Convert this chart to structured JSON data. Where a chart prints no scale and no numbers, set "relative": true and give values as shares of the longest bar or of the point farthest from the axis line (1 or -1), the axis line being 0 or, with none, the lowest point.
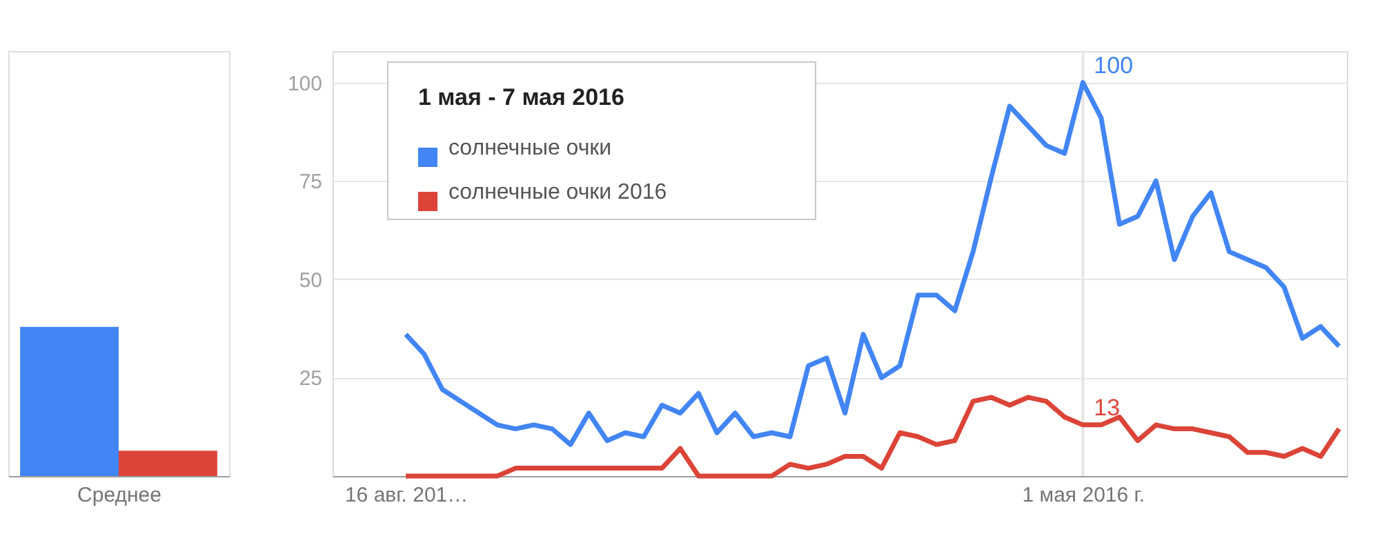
{
  "chart_data": [
    {
      "type": "bar",
      "relative": true,
      "categories": [
        null,
        null
      ],
      "xlabel": "Среднее",
      "tick_labels": false,
      "values": [
        1,
        0.17
      ],
      "colors": [
        "#4285f4",
        "#db4437"
      ]
    },
    {
      "type": "line",
      "legend": "top left",
      "legend_title": "1 мая - 7 мая 2016",
      "marker": "none",
      "line_style": "solid",
      "grid": "y",
      "x": [
        "2015-08-16",
        "2015-08-23",
        "2015-08-30",
        "2015-09-06",
        "2015-09-13",
        "2015-09-20",
        "2015-09-27",
        "2015-10-04",
        "2015-10-11",
        "2015-10-18",
        "2015-10-25",
        "2015-11-01",
        "2015-11-08",
        "2015-11-15",
        "2015-11-22",
        "2015-11-29",
        "2015-12-06",
        "2015-12-13",
        "2015-12-20",
        "2015-12-27",
        "2016-01-03",
        "2016-01-10",
        "2016-01-17",
        "2016-01-24",
        "2016-01-31",
        "2016-02-07",
        "2016-02-14",
        "2016-02-21",
        "2016-02-28",
        "2016-03-06",
        "2016-03-13",
        "2016-03-20",
        "2016-03-27",
        "2016-04-03",
        "2016-04-10",
        "2016-04-17",
        "2016-04-24",
        "2016-05-01",
        "2016-05-08",
        "2016-05-15",
        "2016-05-22",
        "2016-05-29",
        "2016-06-05",
        "2016-06-12",
        "2016-06-19",
        "2016-06-26",
        "2016-07-03",
        "2016-07-10",
        "2016-07-17",
        "2016-07-24",
        "2016-07-31",
        "2016-08-07"
      ],
      "xlim": [
        "2015-07-19",
        "2016-08-10"
      ],
      "xticks": [
        {
          "value": "2015-08-16",
          "label": "16 авг. 201…"
        },
        {
          "value": "2016-05-01",
          "label": "1 мая 2016 г."
        }
      ],
      "ylim": [
        0,
        108
      ],
      "yticks": [
        25,
        50,
        75,
        100
      ],
      "series": [
        {
          "name": "солнечные очки",
          "color": "#4285f4",
          "values": [
            36,
            31,
            22,
            19,
            16,
            13,
            12,
            13,
            12,
            8,
            16,
            9,
            11,
            10,
            18,
            16,
            21,
            11,
            16,
            10,
            11,
            10,
            28,
            30,
            16,
            36,
            25,
            28,
            46,
            46,
            42,
            57,
            76,
            94,
            89,
            84,
            82,
            100,
            91,
            64,
            66,
            75,
            55,
            66,
            72,
            57,
            55,
            53,
            48,
            35,
            38,
            33
          ]
        },
        {
          "name": "солнечные очки 2016",
          "color": "#db4437",
          "values": [
            0,
            0,
            0,
            0,
            0,
            0,
            2,
            2,
            2,
            2,
            2,
            2,
            2,
            2,
            2,
            7,
            0,
            0,
            0,
            0,
            0,
            3,
            2,
            3,
            5,
            5,
            2,
            11,
            10,
            8,
            9,
            19,
            20,
            18,
            20,
            19,
            15,
            13,
            13,
            15,
            9,
            13,
            12,
            12,
            11,
            10,
            6,
            6,
            5,
            7,
            5,
            12
          ]
        }
      ],
      "ref_lines": [
        {
          "axis": "x",
          "value": "2016-05-01",
          "color": "#e6e6e6"
        }
      ],
      "annotations": [
        {
          "text": "100",
          "x": "2016-05-01",
          "y": 100
        },
        {
          "text": "13",
          "x": "2016-05-01",
          "y": 13
        }
      ]
    }
  ]
}
